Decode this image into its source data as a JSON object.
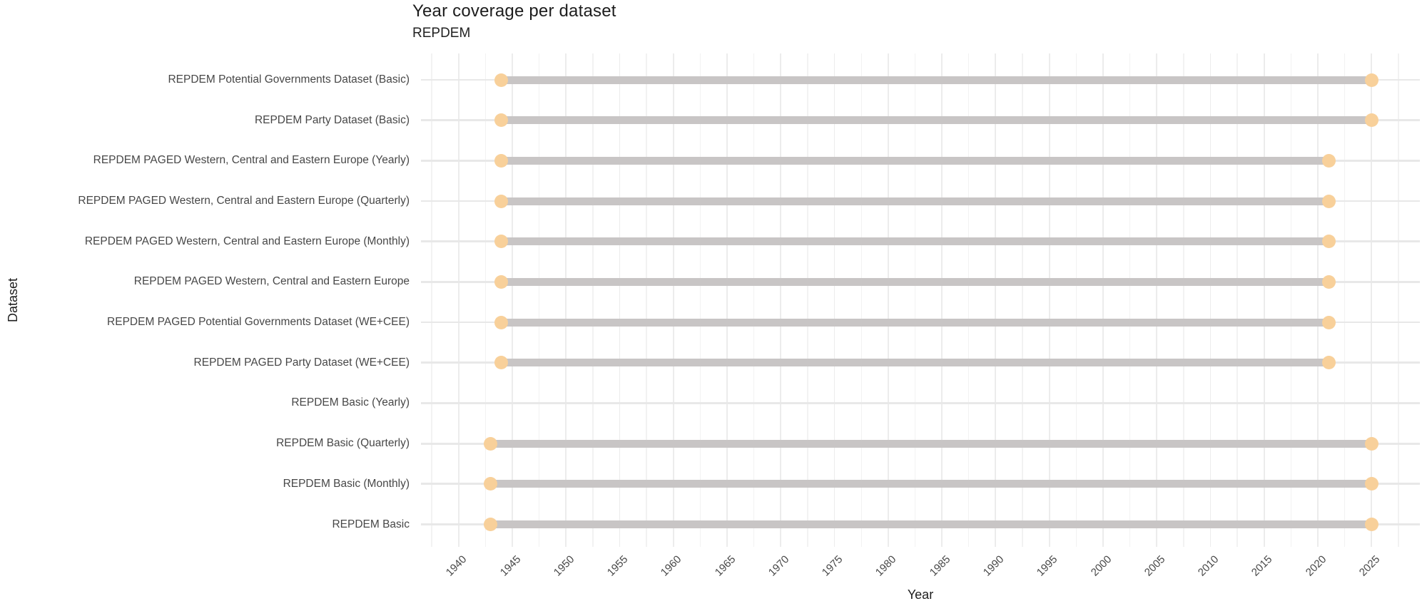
{
  "chart_data": {
    "type": "dumbbell-range",
    "title": "Year coverage per dataset",
    "subtitle": "REPDEM",
    "xlabel": "Year",
    "ylabel": "Dataset",
    "x_domain": [
      1936.5,
      2029.5
    ],
    "x_ticks": [
      1940,
      1945,
      1950,
      1955,
      1960,
      1965,
      1970,
      1975,
      1980,
      1985,
      1990,
      1995,
      2000,
      2005,
      2010,
      2015,
      2020,
      2025
    ],
    "x_minor_ticks": [
      1937.5,
      1942.5,
      1947.5,
      1952.5,
      1957.5,
      1962.5,
      1967.5,
      1972.5,
      1977.5,
      1982.5,
      1987.5,
      1992.5,
      1997.5,
      2002.5,
      2007.5,
      2012.5,
      2017.5,
      2022.5,
      2027.5
    ],
    "grid": true,
    "legend": null,
    "rows": [
      {
        "label": "REPDEM Potential Governments Dataset (Basic)",
        "start": 1944,
        "end": 2025
      },
      {
        "label": "REPDEM Party Dataset (Basic)",
        "start": 1944,
        "end": 2025
      },
      {
        "label": "REPDEM PAGED Western, Central and Eastern Europe (Yearly)",
        "start": 1944,
        "end": 2021
      },
      {
        "label": "REPDEM PAGED Western, Central and Eastern Europe (Quarterly)",
        "start": 1944,
        "end": 2021
      },
      {
        "label": "REPDEM PAGED Western, Central and Eastern Europe (Monthly)",
        "start": 1944,
        "end": 2021
      },
      {
        "label": "REPDEM PAGED Western, Central and Eastern Europe",
        "start": 1944,
        "end": 2021
      },
      {
        "label": "REPDEM PAGED Potential Governments Dataset (WE+CEE)",
        "start": 1944,
        "end": 2021
      },
      {
        "label": "REPDEM PAGED Party Dataset (WE+CEE)",
        "start": 1944,
        "end": 2021
      },
      {
        "label": "REPDEM Basic (Yearly)",
        "start": null,
        "end": null
      },
      {
        "label": "REPDEM Basic (Quarterly)",
        "start": 1943,
        "end": 2025
      },
      {
        "label": "REPDEM Basic (Monthly)",
        "start": 1943,
        "end": 2025
      },
      {
        "label": "REPDEM Basic",
        "start": 1943,
        "end": 2025
      }
    ],
    "colors": {
      "background": "#ffffff",
      "bar": "#c8c5c5",
      "dot": "#f8d09a",
      "grid_major_y": "#e8e8e8",
      "grid_major_x": "#ececec",
      "grid_minor_x": "#f2f2f2",
      "title_text": "#1d1d1d",
      "axis_text": "#474747"
    }
  }
}
